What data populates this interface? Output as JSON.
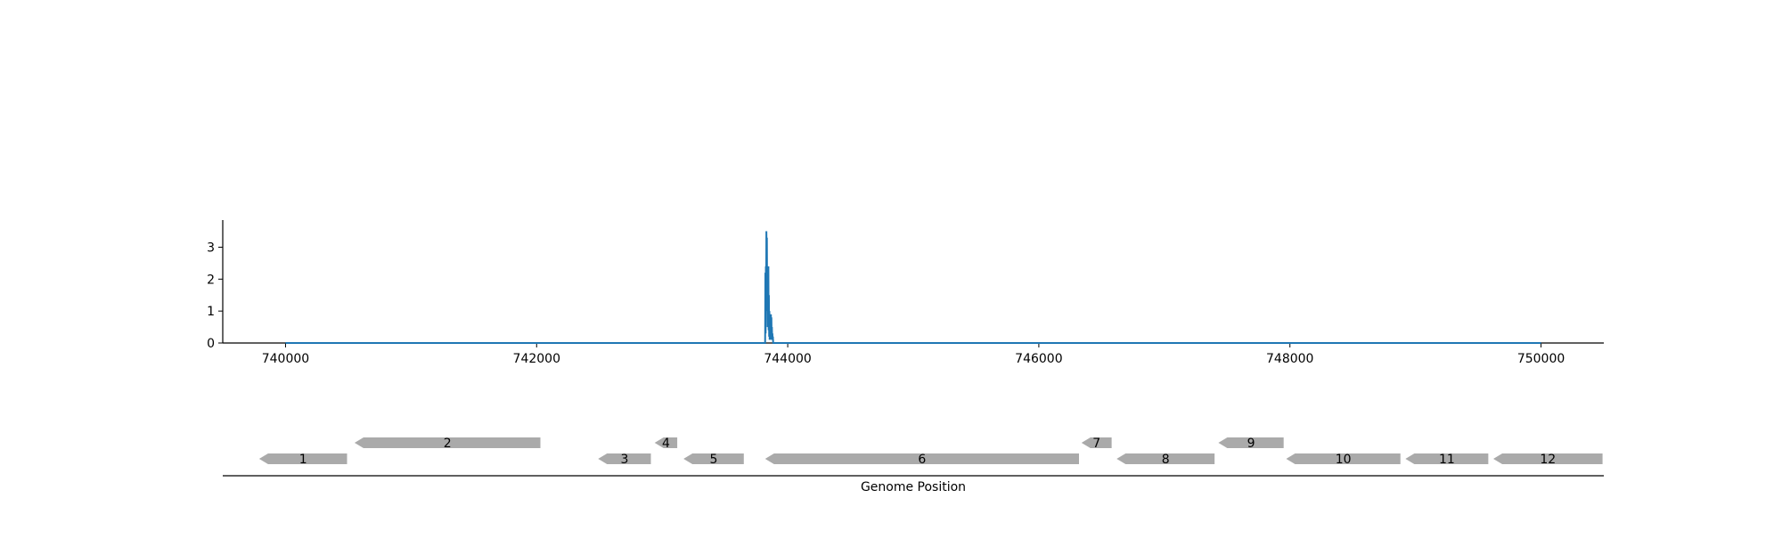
{
  "chart_data": [
    {
      "type": "line",
      "title": "",
      "xlabel": "",
      "ylabel": "",
      "xlim": [
        739500,
        750500
      ],
      "ylim": [
        0,
        3.85
      ],
      "xticks": [
        740000,
        742000,
        744000,
        746000,
        748000,
        750000
      ],
      "yticks": [
        0,
        1,
        2,
        3
      ],
      "grid": false,
      "series": [
        {
          "color": "#1f77b4",
          "x": [
            740000,
            743820,
            743822,
            743824,
            743826,
            743828,
            743830,
            743832,
            743834,
            743836,
            743838,
            743840,
            743842,
            743844,
            743846,
            743848,
            743850,
            743852,
            743854,
            743856,
            743858,
            743860,
            743862,
            743864,
            743866,
            743868,
            743870,
            743872,
            743874,
            743876,
            743878,
            743880,
            743882,
            743884,
            750000
          ],
          "y": [
            0,
            0,
            2.2,
            0.3,
            2.4,
            1.0,
            3.5,
            2.8,
            3.3,
            1.5,
            2.4,
            0.5,
            2.1,
            1.2,
            2.4,
            0.4,
            1.5,
            0.2,
            1.0,
            0.1,
            0.9,
            0.2,
            0.6,
            0.1,
            0.9,
            0.1,
            0.8,
            0.1,
            0.5,
            0.1,
            0.3,
            0.1,
            0.2,
            0,
            0
          ]
        }
      ]
    },
    {
      "type": "gene-track",
      "xlabel": "Genome Position",
      "genes": [
        {
          "label": "1",
          "start": 739790,
          "end": 740490,
          "strand": "-",
          "row": 0
        },
        {
          "label": "2",
          "start": 740550,
          "end": 742030,
          "strand": "-",
          "row": 1
        },
        {
          "label": "3",
          "start": 742490,
          "end": 742910,
          "strand": "-",
          "row": 0
        },
        {
          "label": "4",
          "start": 742940,
          "end": 743120,
          "strand": "-",
          "row": 1
        },
        {
          "label": "5",
          "start": 743170,
          "end": 743650,
          "strand": "-",
          "row": 0
        },
        {
          "label": "6",
          "start": 743820,
          "end": 746320,
          "strand": "-",
          "row": 0
        },
        {
          "label": "7",
          "start": 746340,
          "end": 746580,
          "strand": "-",
          "row": 1
        },
        {
          "label": "8",
          "start": 746620,
          "end": 747400,
          "strand": "-",
          "row": 0
        },
        {
          "label": "9",
          "start": 747430,
          "end": 747950,
          "strand": "-",
          "row": 1
        },
        {
          "label": "10",
          "start": 747970,
          "end": 748880,
          "strand": "-",
          "row": 0
        },
        {
          "label": "11",
          "start": 748920,
          "end": 749580,
          "strand": "-",
          "row": 0
        },
        {
          "label": "12",
          "start": 749620,
          "end": 750490,
          "strand": "-",
          "row": 0
        }
      ],
      "color": "#aaaaaa"
    }
  ]
}
